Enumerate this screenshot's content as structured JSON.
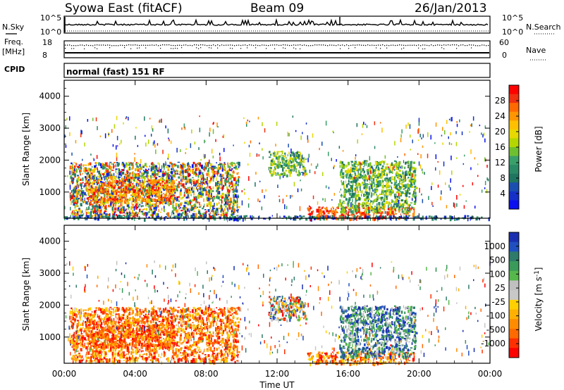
{
  "header": {
    "title": "Syowa East (fitACF)",
    "beam": "Beam 09",
    "date": "26/Jan/2013"
  },
  "top_panels": {
    "nsky_label": "N.Sky",
    "nsearch_label": "N.Search",
    "noise_ticks": [
      "10^5",
      "10^0"
    ],
    "freq_label": "Freq.",
    "freq_unit": "[MHz]",
    "freq_ticks": [
      "18",
      "8"
    ],
    "nave_label": "Nave",
    "nave_ticks": [
      "60",
      "0"
    ],
    "cpid_label": "CPID",
    "cpid_text": "normal (fast) 151 RF"
  },
  "chart_data": [
    {
      "type": "heatmap",
      "name": "power",
      "ylabel": "Slant Range [km]",
      "xlabel": "",
      "yticks": [
        "1000",
        "2000",
        "3000",
        "4000"
      ],
      "ylim": [
        180,
        4500
      ],
      "xlim": [
        0,
        24
      ],
      "colorbar": {
        "label": "Power [dB]",
        "ticks": [
          "28",
          "24",
          "20",
          "16",
          "12",
          "8",
          "4"
        ],
        "colors": [
          "#ff0000",
          "#f03010",
          "#ff6a00",
          "#ff9500",
          "#ffc000",
          "#e6d800",
          "#b5d600",
          "#6fc030",
          "#3aa06a",
          "#2b8a66",
          "#207560",
          "#1a4fb0",
          "#1530c8",
          "#0a10f0"
        ]
      },
      "regions": [
        {
          "x": [
            0.3,
            9.8
          ],
          "y": [
            250,
            1950
          ],
          "level": "mixed-high"
        },
        {
          "x": [
            1.2,
            6.2
          ],
          "y": [
            700,
            1400
          ],
          "level": "high"
        },
        {
          "x": [
            11.5,
            13.6
          ],
          "y": [
            1550,
            2300
          ],
          "level": "mid"
        },
        {
          "x": [
            13.6,
            19.7
          ],
          "y": [
            200,
            550
          ],
          "level": "very-high"
        },
        {
          "x": [
            15.5,
            19.8
          ],
          "y": [
            400,
            2000
          ],
          "level": "mid"
        },
        {
          "x": [
            0,
            24
          ],
          "y": [
            180,
            280
          ],
          "level": "low"
        }
      ]
    },
    {
      "type": "heatmap",
      "name": "velocity",
      "ylabel": "Slant Range [km]",
      "xlabel": "Time UT",
      "xticks": [
        "00:00",
        "04:00",
        "08:00",
        "12:00",
        "16:00",
        "20:00",
        "00:00"
      ],
      "yticks": [
        "1000",
        "2000",
        "3000",
        "4000"
      ],
      "ylim": [
        180,
        4500
      ],
      "xlim": [
        0,
        24
      ],
      "colorbar": {
        "label": "Velocity [m s",
        "label_sup": "-1",
        "label_end": "]",
        "ticks": [
          "1000",
          "500",
          "100",
          "25",
          "-25",
          "-100",
          "-500",
          "-1000"
        ],
        "colors": [
          "#1a2fb0",
          "#2050c0",
          "#2e7b6a",
          "#3a9a5a",
          "#56b84a",
          "#c0c0c0",
          "#c8c8c8",
          "#ffd000",
          "#ffb000",
          "#ff8c00",
          "#ff6a00",
          "#ff3000",
          "#ff0000"
        ]
      },
      "regions": [
        {
          "x": [
            0.3,
            9.8
          ],
          "y": [
            250,
            1950
          ],
          "level": "negative"
        },
        {
          "x": [
            1.2,
            6.2
          ],
          "y": [
            700,
            1400
          ],
          "level": "negative-strong"
        },
        {
          "x": [
            11.5,
            13.6
          ],
          "y": [
            1550,
            2300
          ],
          "level": "mixed"
        },
        {
          "x": [
            13.6,
            19.7
          ],
          "y": [
            200,
            550
          ],
          "level": "negative"
        },
        {
          "x": [
            15.5,
            19.8
          ],
          "y": [
            400,
            2000
          ],
          "level": "positive"
        }
      ]
    }
  ]
}
